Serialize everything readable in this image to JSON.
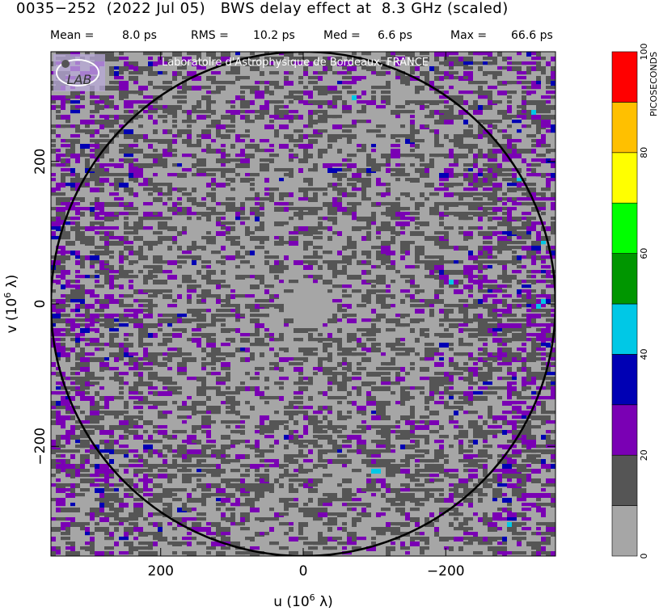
{
  "title": "0035−252  (2022 Jul 05)   BWS delay effect at  8.3 GHz (scaled)",
  "stats": [
    {
      "label": "Mean =",
      "value": "8.0 ps"
    },
    {
      "label": "RMS =",
      "value": "10.2 ps"
    },
    {
      "label": "Med =",
      "value": "6.6 ps"
    },
    {
      "label": "Max =",
      "value": "66.6 ps"
    }
  ],
  "watermark": "Laboratoire d'Astrophysique de Bordeaux, FRANCE",
  "logo_text": "LAB",
  "chart_data": {
    "type": "heatmap",
    "xlabel": "u  (10",
    "xlabel_sup": "6",
    "xlabel_tail": " λ)",
    "ylabel": "v  (10",
    "ylabel_sup": "6",
    "ylabel_tail": " λ)",
    "xlim": [
      354,
      -354
    ],
    "ylim": [
      -354,
      354
    ],
    "x_ticks": [
      {
        "value": 200,
        "label": "200"
      },
      {
        "value": 0,
        "label": "0"
      },
      {
        "value": -200,
        "label": "−200"
      }
    ],
    "y_ticks": [
      {
        "value": 200,
        "label": "200"
      },
      {
        "value": 0,
        "label": "0"
      },
      {
        "value": -200,
        "label": "−200"
      }
    ],
    "circle_radius": 354,
    "colorbar": {
      "label": "PICOSECONDS",
      "ticks": [
        "0",
        "20",
        "40",
        "60",
        "80",
        "100"
      ],
      "levels": [
        {
          "from": 0,
          "to": 10,
          "color": "#a6a6a6"
        },
        {
          "from": 10,
          "to": 20,
          "color": "#555555"
        },
        {
          "from": 20,
          "to": 30,
          "color": "#7a00b4"
        },
        {
          "from": 30,
          "to": 40,
          "color": "#0000b4"
        },
        {
          "from": 40,
          "to": 50,
          "color": "#00c8e6"
        },
        {
          "from": 50,
          "to": 60,
          "color": "#009600"
        },
        {
          "from": 60,
          "to": 70,
          "color": "#00ff00"
        },
        {
          "from": 70,
          "to": 80,
          "color": "#ffff00"
        },
        {
          "from": 80,
          "to": 90,
          "color": "#ffc000"
        },
        {
          "from": 90,
          "to": 100,
          "color": "#ff0000"
        }
      ]
    }
  }
}
